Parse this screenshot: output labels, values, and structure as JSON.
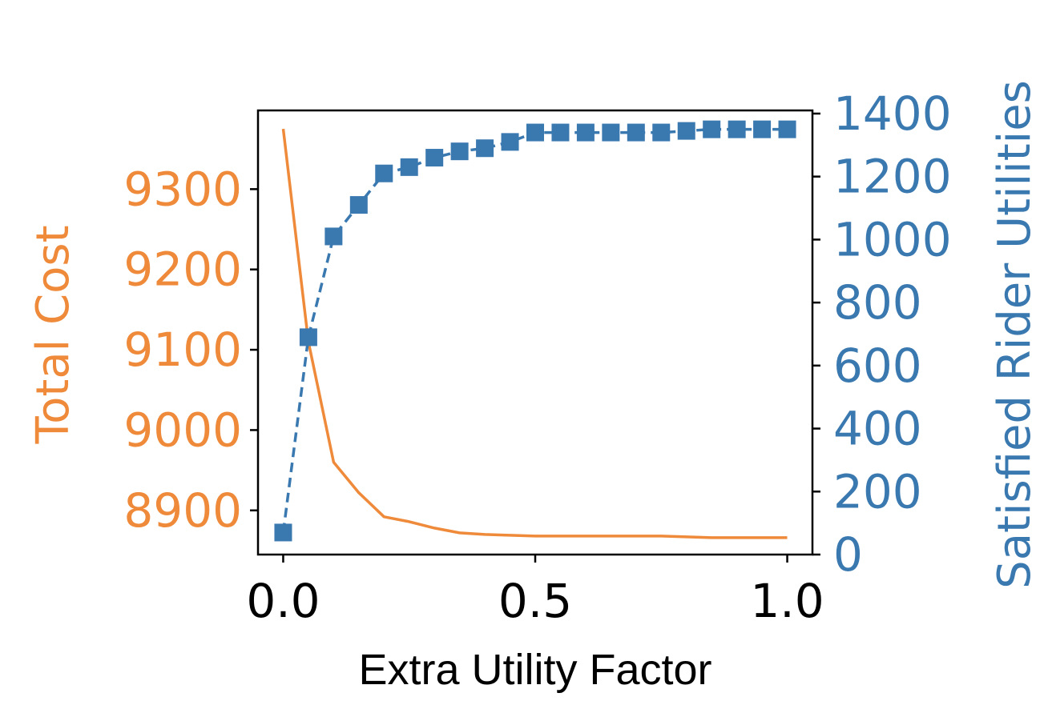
{
  "chart_data": {
    "type": "line",
    "xlabel": "Extra Utility Factor",
    "ylabel_left": "Total Cost",
    "ylabel_right": "Satisfied Rider Utilities",
    "xlim": [
      -0.05,
      1.05
    ],
    "ylim_left": [
      8845,
      9398
    ],
    "ylim_right": [
      0,
      1410
    ],
    "x_ticks": [
      0.0,
      0.5,
      1.0
    ],
    "x_tick_labels": [
      "0.0",
      "0.5",
      "1.0"
    ],
    "left_ticks": [
      8900,
      9000,
      9100,
      9200,
      9300
    ],
    "left_tick_labels": [
      "8900",
      "9000",
      "9100",
      "9200",
      "9300"
    ],
    "right_ticks": [
      0,
      200,
      400,
      600,
      800,
      1000,
      1200,
      1400
    ],
    "right_tick_labels": [
      "0",
      "200",
      "400",
      "600",
      "800",
      "1000",
      "1200",
      "1400"
    ],
    "grid": false,
    "x": [
      0.0,
      0.05,
      0.1,
      0.15,
      0.2,
      0.25,
      0.3,
      0.35,
      0.4,
      0.45,
      0.5,
      0.55,
      0.6,
      0.65,
      0.7,
      0.75,
      0.8,
      0.85,
      0.9,
      0.95,
      1.0
    ],
    "series": [
      {
        "axis": "left",
        "color": "#EE8A3A",
        "style": "solid",
        "marker": "none",
        "values": [
          9375,
          9110,
          8960,
          8922,
          8892,
          8886,
          8878,
          8872,
          8870,
          8869,
          8868,
          8868,
          8868,
          8868,
          8868,
          8868,
          8867,
          8866,
          8866,
          8866,
          8866
        ]
      },
      {
        "axis": "right",
        "color": "#3A78B0",
        "style": "dashed",
        "marker": "square",
        "values": [
          70,
          690,
          1010,
          1110,
          1210,
          1230,
          1260,
          1280,
          1290,
          1310,
          1340,
          1340,
          1340,
          1340,
          1340,
          1340,
          1345,
          1350,
          1350,
          1350,
          1350
        ]
      }
    ]
  },
  "colors": {
    "left_axis": "#EE8A3A",
    "right_axis": "#3A78B0",
    "frame": "#000000"
  }
}
